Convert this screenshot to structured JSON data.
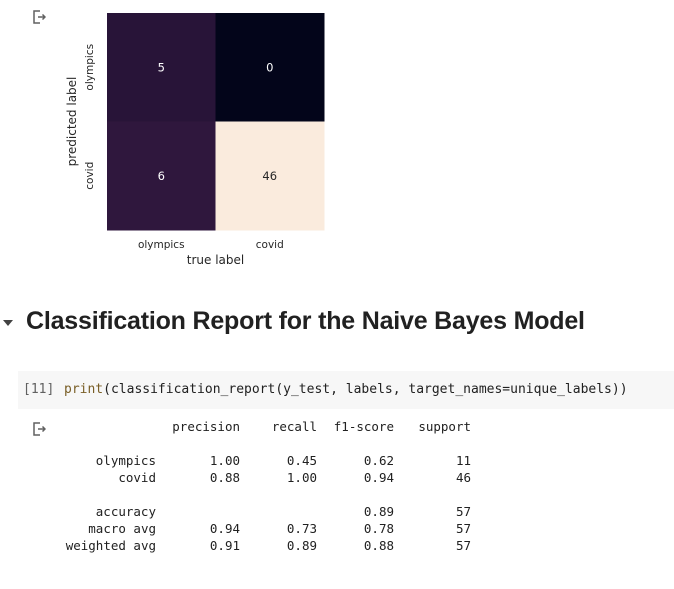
{
  "chart_data": {
    "type": "heatmap",
    "title": "",
    "xlabel": "true label",
    "ylabel": "predicted label",
    "x_categories": [
      "olympics",
      "covid"
    ],
    "y_categories": [
      "olympics",
      "covid"
    ],
    "matrix": [
      [
        5,
        0
      ],
      [
        6,
        46
      ]
    ],
    "colormap": "rocket",
    "colorbar": false
  },
  "section": {
    "title": "Classification Report for the Naive Bayes Model"
  },
  "code_cell": {
    "exec_count": "[11]",
    "fn": "print",
    "args": "(classification_report(y_test, labels, target_names=unique_labels))"
  },
  "report": {
    "headers": [
      "",
      "precision",
      "recall",
      "f1-score",
      "support"
    ],
    "rows": [
      [
        "olympics",
        "1.00",
        "0.45",
        "0.62",
        "11"
      ],
      [
        "covid",
        "0.88",
        "1.00",
        "0.94",
        "46"
      ],
      [
        "accuracy",
        "",
        "",
        "0.89",
        "57"
      ],
      [
        "macro avg",
        "0.94",
        "0.73",
        "0.78",
        "57"
      ],
      [
        "weighted avg",
        "0.91",
        "0.89",
        "0.88",
        "57"
      ]
    ]
  },
  "icons": {
    "output": "output-redirect-icon",
    "collapse": "collapse-arrow-icon"
  }
}
